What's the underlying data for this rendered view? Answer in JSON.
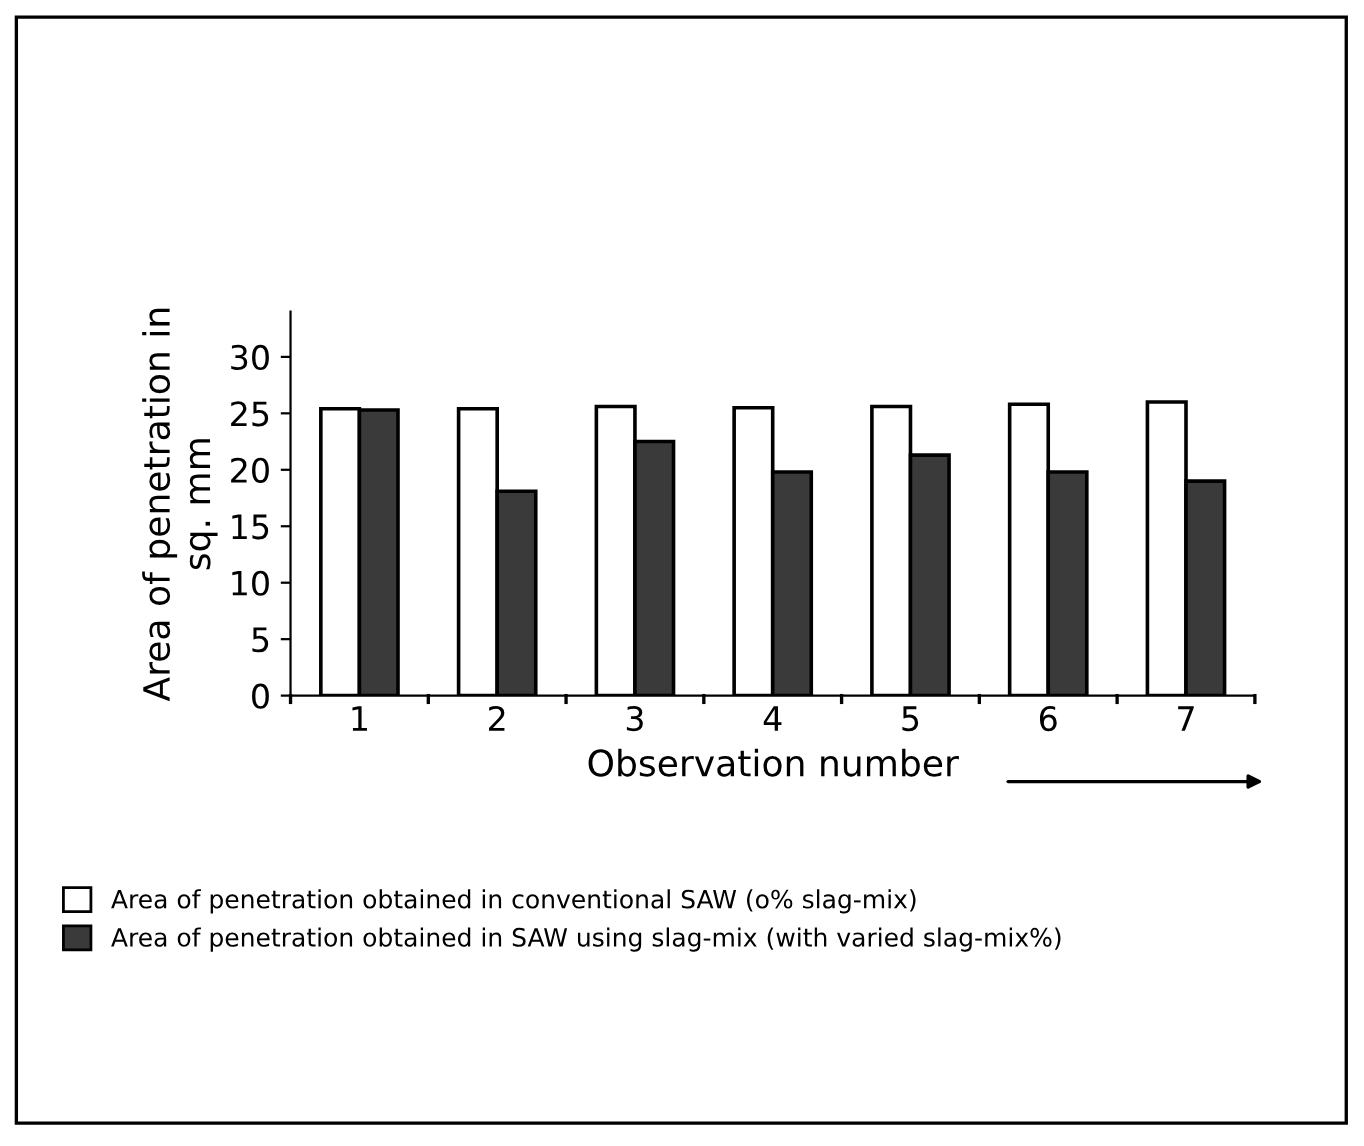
{
  "chart_data": {
    "type": "bar",
    "xlabel": "Observation number",
    "ylabel": "Area of penetration in\nsq. mm",
    "categories": [
      "1",
      "2",
      "3",
      "4",
      "5",
      "6",
      "7"
    ],
    "series": [
      {
        "name": "Area of penetration obtained in conventional SAW (o% slag-mix)",
        "color": "#ffffff",
        "values": [
          25.4,
          25.4,
          25.6,
          25.5,
          25.6,
          25.8,
          26.0
        ]
      },
      {
        "name": "Area of penetration obtained in SAW using slag-mix (with varied slag-mix%)",
        "color": "#3a3a3a",
        "values": [
          25.3,
          18.1,
          22.5,
          19.8,
          21.3,
          19.8,
          19.0
        ]
      }
    ],
    "ylim": [
      0,
      34
    ],
    "yticks": [
      0,
      5,
      10,
      15,
      20,
      25,
      30
    ],
    "grid": false,
    "legend": "bottom left"
  }
}
